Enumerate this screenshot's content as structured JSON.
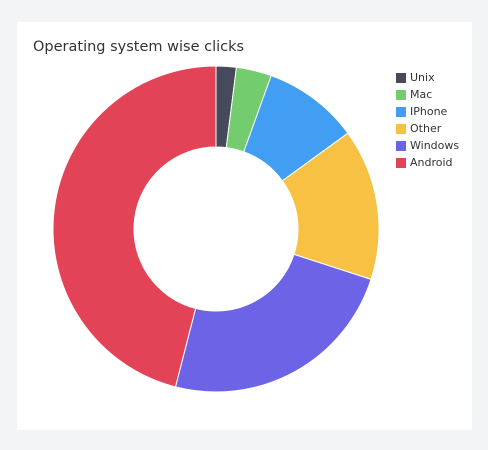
{
  "chart_data": {
    "type": "doughnut",
    "title": "Operating system wise clicks",
    "categories": [
      "Unix",
      "Mac",
      "IPhone",
      "Other",
      "Windows",
      "Android"
    ],
    "values": [
      2,
      3.5,
      9.5,
      15,
      24,
      46
    ],
    "colors": [
      "#474a5a",
      "#73cd6e",
      "#419ef2",
      "#f7c244",
      "#6c63e6",
      "#e24356"
    ],
    "legend": "top-right"
  }
}
